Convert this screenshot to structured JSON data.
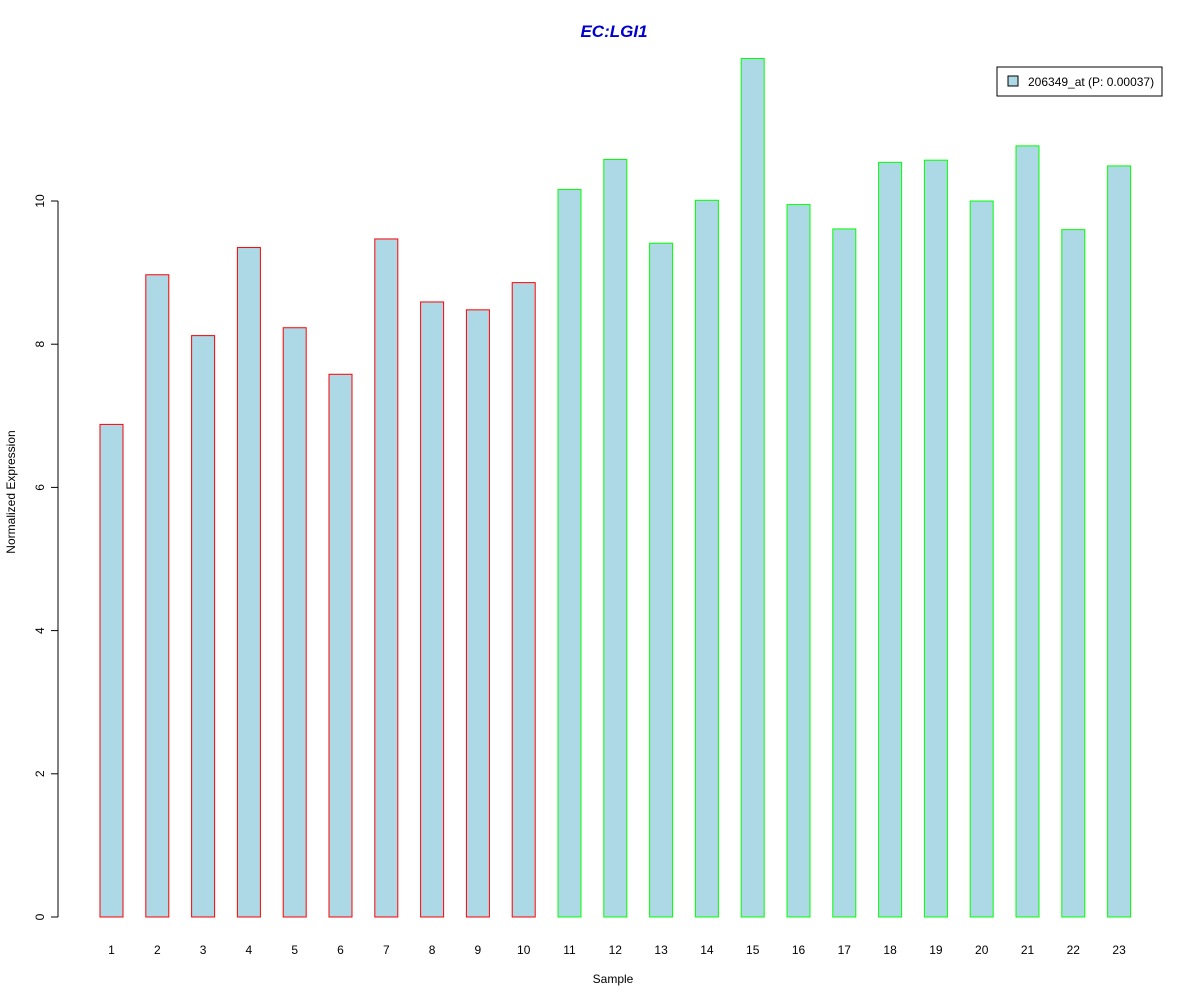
{
  "chart_data": {
    "type": "bar",
    "title": "EC:LGI1",
    "xlabel": "Sample",
    "ylabel": "Normalized Expression",
    "categories": [
      "1",
      "2",
      "3",
      "4",
      "5",
      "6",
      "7",
      "8",
      "9",
      "10",
      "11",
      "12",
      "13",
      "14",
      "15",
      "16",
      "17",
      "18",
      "19",
      "20",
      "21",
      "22",
      "23"
    ],
    "series": [
      {
        "name": "206349_at (P: 0.00037)",
        "values": [
          6.88,
          8.97,
          8.12,
          9.35,
          8.23,
          7.58,
          9.47,
          8.59,
          8.48,
          8.86,
          10.16,
          10.58,
          9.41,
          10.01,
          11.99,
          9.95,
          9.61,
          10.54,
          10.57,
          10.0,
          10.77,
          9.6,
          10.49
        ],
        "border_colors": [
          "#ff0000",
          "#ff0000",
          "#ff0000",
          "#ff0000",
          "#ff0000",
          "#ff0000",
          "#ff0000",
          "#ff0000",
          "#ff0000",
          "#ff0000",
          "#00ff00",
          "#00ff00",
          "#00ff00",
          "#00ff00",
          "#00ff00",
          "#00ff00",
          "#00ff00",
          "#00ff00",
          "#00ff00",
          "#00ff00",
          "#00ff00",
          "#00ff00",
          "#00ff00"
        ]
      }
    ],
    "ylim": [
      0,
      12
    ],
    "yticks": [
      0,
      2,
      4,
      6,
      8,
      10
    ],
    "grid": false,
    "legend_position": "top-right",
    "colors": {
      "bar_fill": "#add8e6",
      "title": "#0000cd",
      "axis": "#000000"
    }
  }
}
